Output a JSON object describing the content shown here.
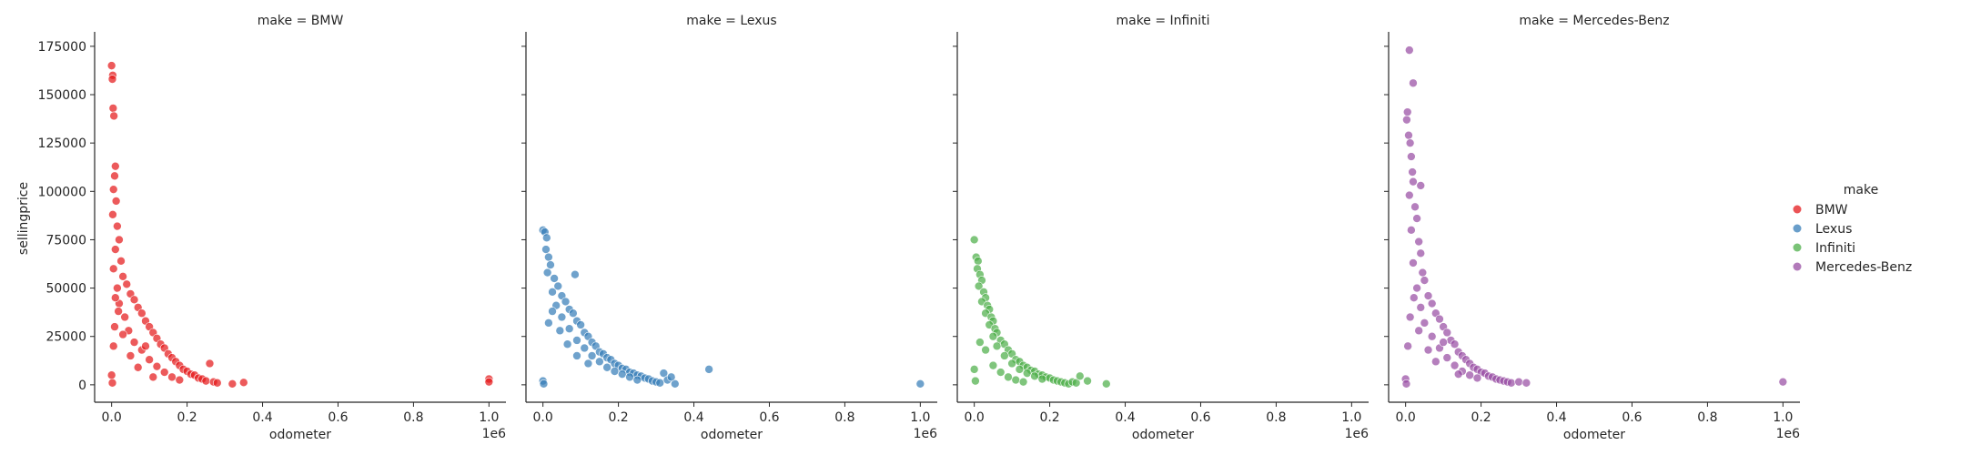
{
  "chart_data": {
    "type": "scatter",
    "facet_variable": "make",
    "x_label": "odometer",
    "y_label": "sellingprice",
    "x_offset_label": "1e6",
    "x_range": [
      -0.045,
      1.045
    ],
    "x_ticks": [
      0.0,
      0.2,
      0.4,
      0.6,
      0.8,
      1.0
    ],
    "x_tick_labels": [
      "0.0",
      "0.2",
      "0.4",
      "0.6",
      "0.8",
      "1.0"
    ],
    "y_range": [
      -9000,
      182000
    ],
    "y_ticks": [
      0,
      25000,
      50000,
      75000,
      100000,
      125000,
      150000,
      175000
    ],
    "y_tick_labels": [
      "0",
      "25000",
      "50000",
      "75000",
      "100000",
      "125000",
      "150000",
      "175000"
    ],
    "grid": false,
    "legend_title": "make",
    "legend_position": "right",
    "facets": [
      {
        "title": "make = BMW",
        "series_name": "BMW",
        "color": "#e41a1c",
        "points": [
          [
            0.0,
            165000
          ],
          [
            0.003,
            160000
          ],
          [
            0.002,
            158000
          ],
          [
            0.004,
            143000
          ],
          [
            0.006,
            139000
          ],
          [
            0.01,
            113000
          ],
          [
            0.008,
            108000
          ],
          [
            0.005,
            101000
          ],
          [
            0.012,
            95000
          ],
          [
            0.003,
            88000
          ],
          [
            0.015,
            82000
          ],
          [
            0.02,
            75000
          ],
          [
            0.01,
            70000
          ],
          [
            0.025,
            64000
          ],
          [
            0.005,
            60000
          ],
          [
            0.03,
            56000
          ],
          [
            0.04,
            52000
          ],
          [
            0.015,
            50000
          ],
          [
            0.05,
            47000
          ],
          [
            0.06,
            44000
          ],
          [
            0.02,
            42000
          ],
          [
            0.07,
            40000
          ],
          [
            0.08,
            37000
          ],
          [
            0.035,
            35000
          ],
          [
            0.09,
            33000
          ],
          [
            0.1,
            30000
          ],
          [
            0.045,
            28000
          ],
          [
            0.11,
            27000
          ],
          [
            0.12,
            24000
          ],
          [
            0.06,
            22000
          ],
          [
            0.13,
            21000
          ],
          [
            0.14,
            19000
          ],
          [
            0.08,
            18000
          ],
          [
            0.15,
            16000
          ],
          [
            0.16,
            14000
          ],
          [
            0.1,
            13000
          ],
          [
            0.17,
            12000
          ],
          [
            0.18,
            10000
          ],
          [
            0.12,
            9500
          ],
          [
            0.19,
            8000
          ],
          [
            0.2,
            7000
          ],
          [
            0.14,
            6500
          ],
          [
            0.21,
            5500
          ],
          [
            0.22,
            5000
          ],
          [
            0.16,
            4000
          ],
          [
            0.23,
            3500
          ],
          [
            0.24,
            3000
          ],
          [
            0.18,
            2500
          ],
          [
            0.25,
            2000
          ],
          [
            0.26,
            11000
          ],
          [
            0.27,
            1500
          ],
          [
            0.28,
            1000
          ],
          [
            0.32,
            500
          ],
          [
            0.35,
            1200
          ],
          [
            0.0,
            5000
          ],
          [
            0.002,
            1000
          ],
          [
            0.005,
            20000
          ],
          [
            0.008,
            30000
          ],
          [
            0.01,
            45000
          ],
          [
            0.018,
            38000
          ],
          [
            0.03,
            26000
          ],
          [
            0.05,
            15000
          ],
          [
            0.07,
            9000
          ],
          [
            0.09,
            20000
          ],
          [
            0.11,
            4000
          ],
          [
            1.0,
            3000
          ],
          [
            1.0,
            1500
          ]
        ]
      },
      {
        "title": "make = Lexus",
        "series_name": "Lexus",
        "color": "#377eb8",
        "points": [
          [
            0.0,
            80000
          ],
          [
            0.005,
            79000
          ],
          [
            0.01,
            76000
          ],
          [
            0.008,
            70000
          ],
          [
            0.015,
            66000
          ],
          [
            0.02,
            62000
          ],
          [
            0.012,
            58000
          ],
          [
            0.03,
            55000
          ],
          [
            0.04,
            51000
          ],
          [
            0.025,
            48000
          ],
          [
            0.05,
            46000
          ],
          [
            0.06,
            43000
          ],
          [
            0.035,
            41000
          ],
          [
            0.07,
            39000
          ],
          [
            0.08,
            37000
          ],
          [
            0.05,
            35000
          ],
          [
            0.09,
            33000
          ],
          [
            0.1,
            31000
          ],
          [
            0.07,
            29000
          ],
          [
            0.11,
            27000
          ],
          [
            0.12,
            25000
          ],
          [
            0.09,
            23000
          ],
          [
            0.13,
            22000
          ],
          [
            0.14,
            20000
          ],
          [
            0.11,
            19000
          ],
          [
            0.15,
            17000
          ],
          [
            0.16,
            16000
          ],
          [
            0.13,
            15000
          ],
          [
            0.17,
            14000
          ],
          [
            0.18,
            13000
          ],
          [
            0.15,
            12000
          ],
          [
            0.19,
            11000
          ],
          [
            0.2,
            10000
          ],
          [
            0.17,
            9000
          ],
          [
            0.21,
            8500
          ],
          [
            0.22,
            8000
          ],
          [
            0.19,
            7000
          ],
          [
            0.23,
            6500
          ],
          [
            0.24,
            6000
          ],
          [
            0.21,
            5500
          ],
          [
            0.25,
            5000
          ],
          [
            0.26,
            4500
          ],
          [
            0.23,
            4000
          ],
          [
            0.27,
            3500
          ],
          [
            0.28,
            3000
          ],
          [
            0.25,
            2500
          ],
          [
            0.29,
            2000
          ],
          [
            0.3,
            1500
          ],
          [
            0.31,
            1000
          ],
          [
            0.32,
            6000
          ],
          [
            0.33,
            2500
          ],
          [
            0.35,
            500
          ],
          [
            0.34,
            4000
          ],
          [
            0.0,
            2000
          ],
          [
            0.002,
            500
          ],
          [
            0.015,
            32000
          ],
          [
            0.025,
            38000
          ],
          [
            0.045,
            28000
          ],
          [
            0.065,
            21000
          ],
          [
            0.09,
            15000
          ],
          [
            0.12,
            11000
          ],
          [
            0.085,
            57000
          ],
          [
            0.44,
            8000
          ],
          [
            1.0,
            500
          ]
        ]
      },
      {
        "title": "make = Infiniti",
        "series_name": "Infiniti",
        "color": "#4daf4a",
        "points": [
          [
            0.0,
            75000
          ],
          [
            0.005,
            66000
          ],
          [
            0.01,
            64000
          ],
          [
            0.008,
            60000
          ],
          [
            0.015,
            57000
          ],
          [
            0.02,
            54000
          ],
          [
            0.012,
            51000
          ],
          [
            0.025,
            48000
          ],
          [
            0.03,
            45000
          ],
          [
            0.02,
            43000
          ],
          [
            0.035,
            41000
          ],
          [
            0.04,
            39000
          ],
          [
            0.03,
            37000
          ],
          [
            0.045,
            35000
          ],
          [
            0.05,
            33000
          ],
          [
            0.04,
            31000
          ],
          [
            0.055,
            29000
          ],
          [
            0.06,
            27000
          ],
          [
            0.05,
            25000
          ],
          [
            0.07,
            23000
          ],
          [
            0.08,
            21000
          ],
          [
            0.06,
            20000
          ],
          [
            0.09,
            18000
          ],
          [
            0.1,
            16000
          ],
          [
            0.08,
            15000
          ],
          [
            0.11,
            13000
          ],
          [
            0.12,
            12000
          ],
          [
            0.1,
            11000
          ],
          [
            0.13,
            10000
          ],
          [
            0.14,
            9000
          ],
          [
            0.12,
            8000
          ],
          [
            0.15,
            7500
          ],
          [
            0.16,
            7000
          ],
          [
            0.14,
            6000
          ],
          [
            0.17,
            5500
          ],
          [
            0.18,
            5000
          ],
          [
            0.16,
            4500
          ],
          [
            0.19,
            4000
          ],
          [
            0.2,
            3500
          ],
          [
            0.18,
            3000
          ],
          [
            0.21,
            2500
          ],
          [
            0.22,
            2000
          ],
          [
            0.23,
            1500
          ],
          [
            0.24,
            1000
          ],
          [
            0.25,
            500
          ],
          [
            0.26,
            1500
          ],
          [
            0.27,
            1000
          ],
          [
            0.28,
            4500
          ],
          [
            0.3,
            2000
          ],
          [
            0.35,
            500
          ],
          [
            0.0,
            8000
          ],
          [
            0.003,
            2000
          ],
          [
            0.015,
            22000
          ],
          [
            0.03,
            18000
          ],
          [
            0.05,
            10000
          ],
          [
            0.07,
            6500
          ],
          [
            0.09,
            4000
          ],
          [
            0.11,
            2500
          ],
          [
            0.13,
            1500
          ]
        ]
      },
      {
        "title": "make = Mercedes-Benz",
        "series_name": "Mercedes-Benz",
        "color": "#984ea3",
        "points": [
          [
            0.01,
            173000
          ],
          [
            0.02,
            156000
          ],
          [
            0.005,
            141000
          ],
          [
            0.003,
            137000
          ],
          [
            0.008,
            129000
          ],
          [
            0.012,
            125000
          ],
          [
            0.015,
            118000
          ],
          [
            0.018,
            110000
          ],
          [
            0.02,
            105000
          ],
          [
            0.04,
            103000
          ],
          [
            0.01,
            98000
          ],
          [
            0.025,
            92000
          ],
          [
            0.03,
            86000
          ],
          [
            0.015,
            80000
          ],
          [
            0.035,
            74000
          ],
          [
            0.04,
            68000
          ],
          [
            0.02,
            63000
          ],
          [
            0.045,
            58000
          ],
          [
            0.05,
            54000
          ],
          [
            0.03,
            50000
          ],
          [
            0.06,
            46000
          ],
          [
            0.07,
            42000
          ],
          [
            0.04,
            40000
          ],
          [
            0.08,
            37000
          ],
          [
            0.09,
            34000
          ],
          [
            0.05,
            32000
          ],
          [
            0.1,
            30000
          ],
          [
            0.11,
            27000
          ],
          [
            0.07,
            25000
          ],
          [
            0.12,
            23000
          ],
          [
            0.13,
            21000
          ],
          [
            0.09,
            19000
          ],
          [
            0.14,
            17000
          ],
          [
            0.15,
            15000
          ],
          [
            0.11,
            14000
          ],
          [
            0.16,
            13000
          ],
          [
            0.17,
            11000
          ],
          [
            0.13,
            10000
          ],
          [
            0.18,
            9000
          ],
          [
            0.19,
            8000
          ],
          [
            0.15,
            7000
          ],
          [
            0.2,
            6500
          ],
          [
            0.21,
            6000
          ],
          [
            0.17,
            5000
          ],
          [
            0.22,
            4500
          ],
          [
            0.23,
            4000
          ],
          [
            0.19,
            3500
          ],
          [
            0.24,
            3000
          ],
          [
            0.25,
            2500
          ],
          [
            0.26,
            2000
          ],
          [
            0.27,
            1500
          ],
          [
            0.28,
            1000
          ],
          [
            0.3,
            1500
          ],
          [
            0.32,
            1000
          ],
          [
            0.0,
            3000
          ],
          [
            0.002,
            500
          ],
          [
            0.006,
            20000
          ],
          [
            0.012,
            35000
          ],
          [
            0.022,
            45000
          ],
          [
            0.035,
            28000
          ],
          [
            0.06,
            18000
          ],
          [
            0.08,
            12000
          ],
          [
            0.1,
            22000
          ],
          [
            0.14,
            5500
          ],
          [
            1.0,
            1500
          ]
        ]
      }
    ]
  }
}
